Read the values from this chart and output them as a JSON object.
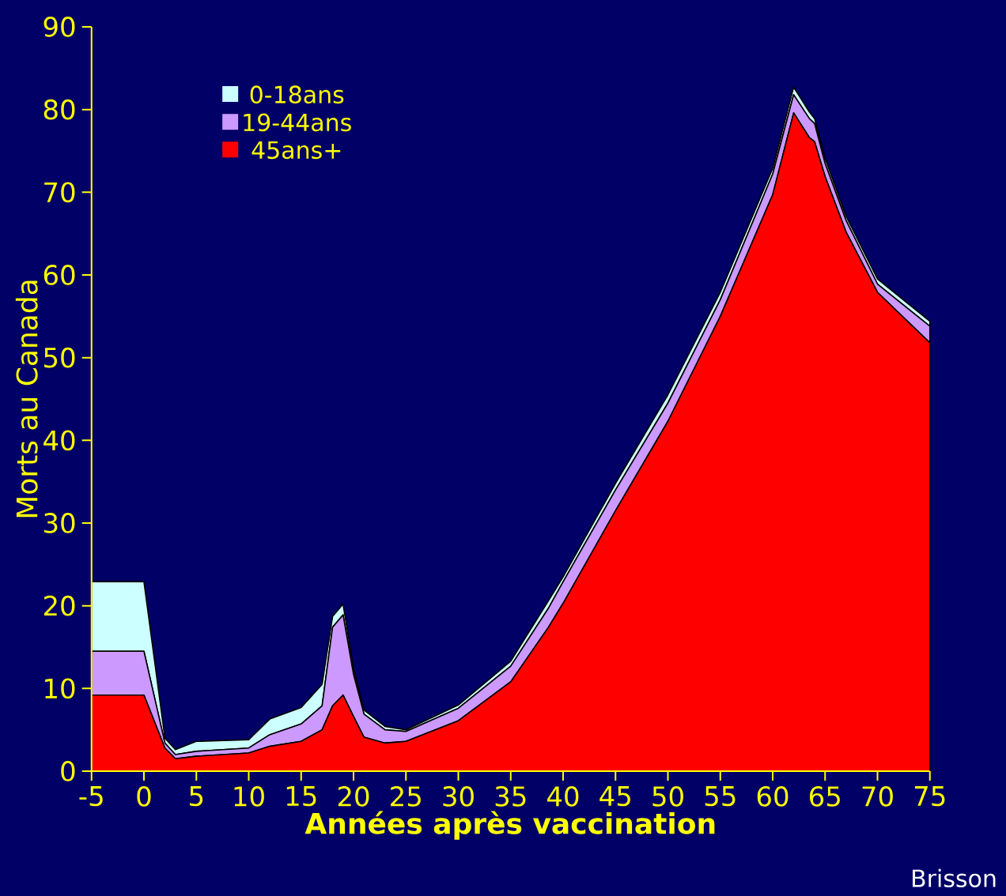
{
  "chart_data": {
    "type": "area",
    "stacked": true,
    "xlabel": "Années après vaccination",
    "ylabel": "Morts au Canada",
    "x": [
      -5,
      0,
      2,
      3,
      5,
      10,
      12,
      15,
      17,
      18,
      19,
      20,
      21,
      23,
      25,
      30,
      35,
      38.6,
      40,
      45,
      50,
      55,
      60,
      62,
      63.5,
      64,
      65,
      67,
      70,
      75
    ],
    "series": [
      {
        "name": "45ans+",
        "color": "#ff0000",
        "values": [
          9.2,
          9.2,
          2.8,
          1.5,
          1.8,
          2.2,
          3.0,
          3.6,
          5.0,
          7.9,
          9.2,
          6.6,
          4.1,
          3.4,
          3.6,
          6.1,
          10.8,
          17.4,
          20.3,
          31.5,
          42.3,
          55.0,
          69.7,
          79.6,
          76.6,
          76.1,
          71.9,
          65.2,
          57.9,
          51.8
        ]
      },
      {
        "name": "19-44ans",
        "color": "#cc99ff",
        "values": [
          5.3,
          5.3,
          0.6,
          0.5,
          0.6,
          0.6,
          1.4,
          2.1,
          2.9,
          9.5,
          9.7,
          5.1,
          2.8,
          1.6,
          1.2,
          1.5,
          1.9,
          2.3,
          2.6,
          2.5,
          2.2,
          2.0,
          2.5,
          2.2,
          2.3,
          2.2,
          1.6,
          1.4,
          1.0,
          2.0
        ]
      },
      {
        "name": "0-18ans",
        "color": "#ccffff",
        "values": [
          8.4,
          8.4,
          0.6,
          0.6,
          1.2,
          1.0,
          1.9,
          2.0,
          2.6,
          1.3,
          1.3,
          0.7,
          0.5,
          0.4,
          0.2,
          0.4,
          0.6,
          0.9,
          0.6,
          0.8,
          1.0,
          0.9,
          0.7,
          0.9,
          0.8,
          0.6,
          0.6,
          0.5,
          0.6,
          0.6
        ]
      }
    ],
    "xlim": [
      -5,
      75
    ],
    "xticks": [
      -5,
      0,
      5,
      10,
      15,
      20,
      25,
      30,
      35,
      40,
      45,
      50,
      55,
      60,
      65,
      70,
      75
    ],
    "ylim": [
      0,
      90
    ],
    "yticks": [
      0,
      10,
      20,
      30,
      40,
      50,
      60,
      70,
      80,
      90
    ],
    "legend": "top left",
    "grid": false,
    "annotations": [
      "Brisson"
    ]
  }
}
